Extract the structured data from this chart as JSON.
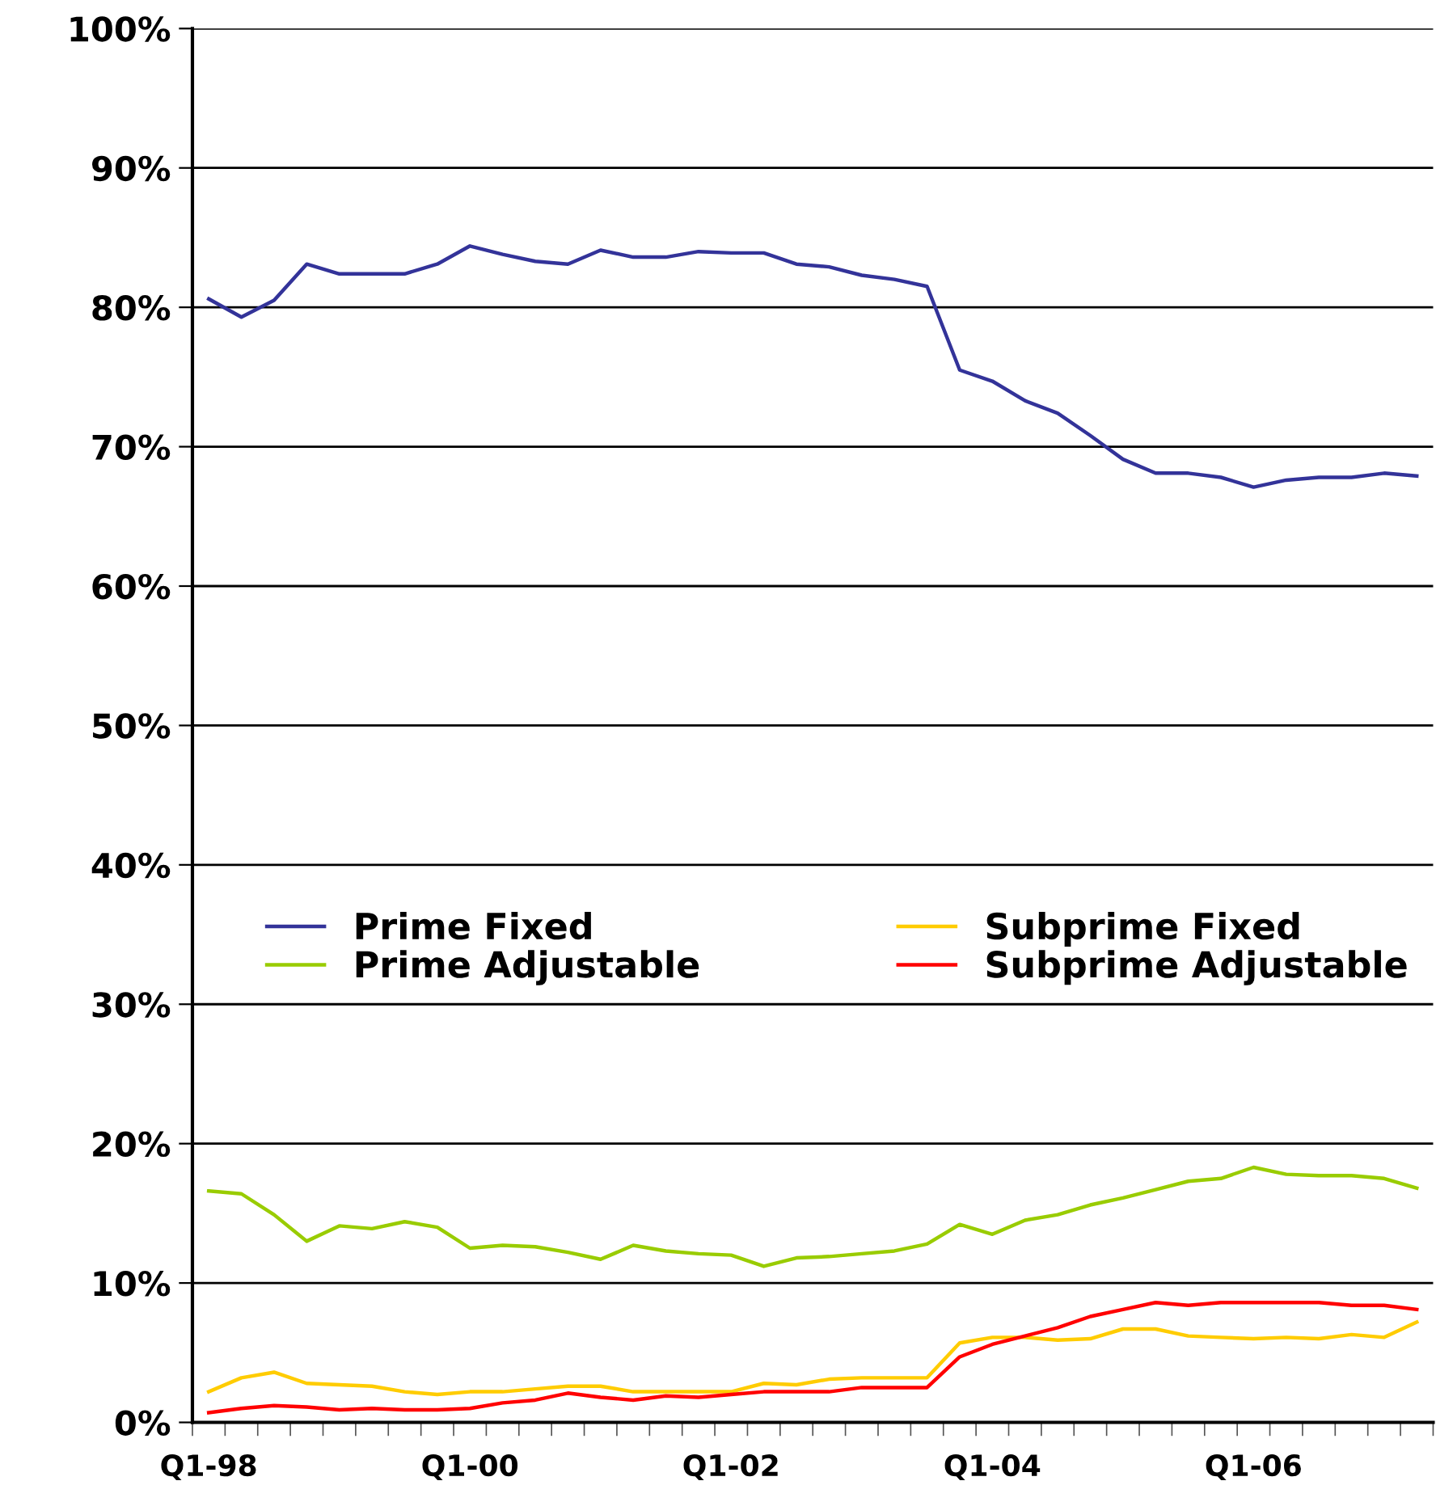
{
  "chart_data": {
    "type": "line",
    "categories": [
      "Q1-98",
      null,
      null,
      null,
      null,
      null,
      null,
      null,
      "Q1-00",
      null,
      null,
      null,
      null,
      null,
      null,
      null,
      "Q1-02",
      null,
      null,
      null,
      null,
      null,
      null,
      null,
      "Q1-04",
      null,
      null,
      null,
      null,
      null,
      null,
      null,
      "Q1-06",
      null,
      null,
      null,
      null,
      null
    ],
    "series": [
      {
        "name": "Prime Fixed",
        "color": "#333399",
        "values": [
          80.6,
          79.3,
          80.5,
          83.1,
          82.4,
          82.4,
          82.4,
          83.1,
          84.4,
          83.8,
          83.3,
          83.1,
          84.1,
          83.6,
          83.6,
          84.0,
          83.9,
          83.9,
          83.1,
          82.9,
          82.3,
          82.0,
          81.5,
          75.5,
          74.7,
          73.3,
          72.4,
          70.8,
          69.1,
          68.1,
          68.1,
          67.8,
          67.1,
          67.6,
          67.8,
          67.8,
          68.1,
          67.9
        ]
      },
      {
        "name": "Prime Adjustable",
        "color": "#99cc00",
        "values": [
          16.6,
          16.4,
          14.9,
          13.0,
          14.1,
          13.9,
          14.4,
          14.0,
          12.5,
          12.7,
          12.6,
          12.2,
          11.7,
          12.7,
          12.3,
          12.1,
          12.0,
          11.2,
          11.8,
          11.9,
          12.1,
          12.3,
          12.8,
          14.2,
          13.5,
          14.5,
          14.9,
          15.6,
          16.1,
          16.7,
          17.3,
          17.5,
          18.3,
          17.8,
          17.7,
          17.7,
          17.5,
          16.8
        ]
      },
      {
        "name": "Subprime Fixed",
        "color": "#ffcc00",
        "values": [
          2.2,
          3.2,
          3.6,
          2.8,
          2.7,
          2.6,
          2.2,
          2.0,
          2.2,
          2.2,
          2.4,
          2.6,
          2.6,
          2.2,
          2.2,
          2.2,
          2.2,
          2.8,
          2.7,
          3.1,
          3.2,
          3.2,
          3.2,
          5.7,
          6.1,
          6.1,
          5.9,
          6.0,
          6.7,
          6.7,
          6.2,
          6.1,
          6.0,
          6.1,
          6.0,
          6.3,
          6.1,
          7.2
        ]
      },
      {
        "name": "Subprime Adjustable",
        "color": "#ff0000",
        "values": [
          0.7,
          1.0,
          1.2,
          1.1,
          0.9,
          1.0,
          0.9,
          0.9,
          1.0,
          1.4,
          1.6,
          2.1,
          1.8,
          1.6,
          1.9,
          1.8,
          2.0,
          2.2,
          2.2,
          2.2,
          2.5,
          2.5,
          2.5,
          4.7,
          5.6,
          6.2,
          6.8,
          7.6,
          8.1,
          8.6,
          8.4,
          8.6,
          8.6,
          8.6,
          8.6,
          8.4,
          8.4,
          8.1
        ]
      }
    ],
    "ylim": [
      0,
      100
    ],
    "yticks": [
      {
        "value": 0,
        "label": "0%"
      },
      {
        "value": 10,
        "label": "10%"
      },
      {
        "value": 20,
        "label": "20%"
      },
      {
        "value": 30,
        "label": "30%"
      },
      {
        "value": 40,
        "label": "40%"
      },
      {
        "value": 50,
        "label": "50%"
      },
      {
        "value": 60,
        "label": "60%"
      },
      {
        "value": 70,
        "label": "70%"
      },
      {
        "value": 80,
        "label": "80%"
      },
      {
        "value": 90,
        "label": "90%"
      },
      {
        "value": 100,
        "label": "100%"
      }
    ],
    "grid": "y",
    "legend": "bottom",
    "marker": "none",
    "line_style": "solid"
  }
}
